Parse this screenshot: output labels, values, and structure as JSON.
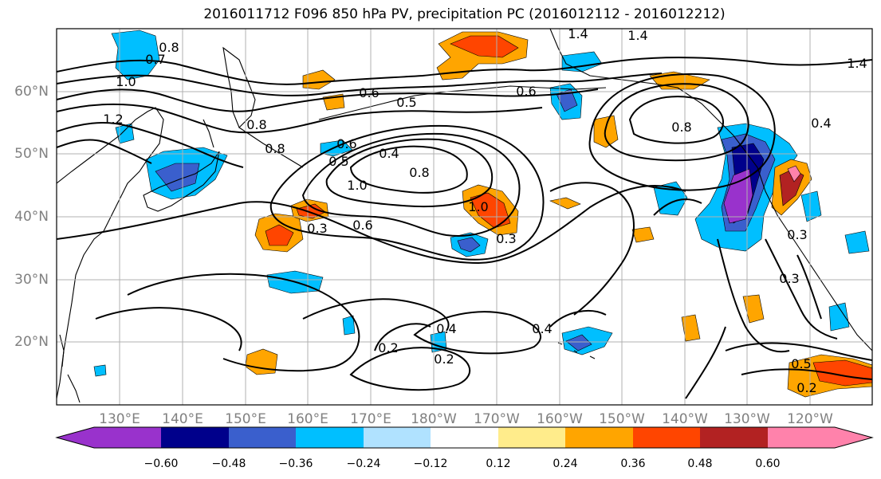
{
  "title": "2016011712 F096 850 hPa PV, precipitation PC (2016012112 - 2016012212)",
  "axes": {
    "lat_labels": [
      "60°N",
      "50°N",
      "40°N",
      "30°N",
      "20°N"
    ],
    "lon_labels": [
      "130°E",
      "140°E",
      "150°E",
      "160°E",
      "170°E",
      "180°W",
      "170°W",
      "160°W",
      "150°W",
      "140°W",
      "130°W",
      "120°W"
    ]
  },
  "colorbar": {
    "labels": [
      "−0.60",
      "−0.48",
      "−0.36",
      "−0.24",
      "−0.12",
      "0.12",
      "0.24",
      "0.36",
      "0.48",
      "0.60"
    ],
    "colors": [
      "#9932cc",
      "#00008b",
      "#3a5fcd",
      "#00bfff",
      "#b0e2ff",
      "#ffffff",
      "#ffec8b",
      "#ffa500",
      "#ff4500",
      "#b22222",
      "#ff82ab"
    ]
  },
  "contour_labels": [
    "1.4",
    "1.4",
    "1.4",
    "0.8",
    "0.7",
    "1.0",
    "1.2",
    "0.6",
    "0.5",
    "0.8",
    "0.8",
    "0.6",
    "0.5",
    "0.4",
    "0.8",
    "1.0",
    "0.6",
    "0.3",
    "0.3",
    "0.6",
    "0.8",
    "1.0",
    "0.3",
    "0.3",
    "0.4",
    "0.4",
    "0.2",
    "0.2",
    "0.5",
    "0.2",
    "0.4"
  ]
}
